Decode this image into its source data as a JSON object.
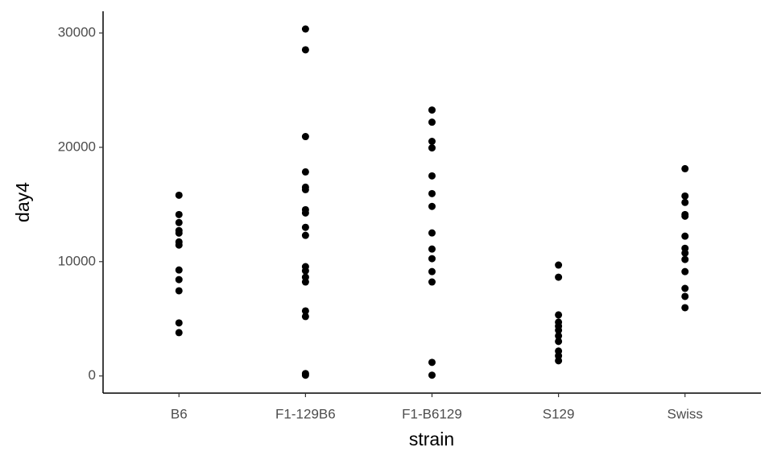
{
  "chart_data": {
    "type": "strip",
    "x_label": "strain",
    "y_label": "day4",
    "categories": [
      "B6",
      "F1-129B6",
      "F1-B6129",
      "S129",
      "Swiss"
    ],
    "values": [
      [
        15810,
        14120,
        13420,
        12720,
        12500,
        11730,
        11450,
        9270,
        8430,
        7450,
        4640,
        3790
      ],
      [
        30350,
        28530,
        20940,
        17850,
        16510,
        16300,
        14540,
        14260,
        13000,
        12300,
        9560,
        9200,
        8640,
        8220,
        5690,
        5200,
        210,
        70
      ],
      [
        23260,
        22200,
        20520,
        19950,
        17500,
        15950,
        14830,
        12510,
        11100,
        10260,
        9130,
        8220,
        1190,
        70
      ],
      [
        9700,
        8640,
        5340,
        4710,
        4360,
        4000,
        3510,
        3020,
        2180,
        1760,
        1330
      ],
      [
        18130,
        15740,
        15180,
        14120,
        13980,
        12230,
        11170,
        10750,
        10190,
        9130,
        7660,
        6960,
        5970
      ]
    ],
    "color": "#000000",
    "ylim": [
      -1500,
      31900
    ],
    "yticks": [
      0,
      10000,
      20000,
      30000
    ]
  }
}
